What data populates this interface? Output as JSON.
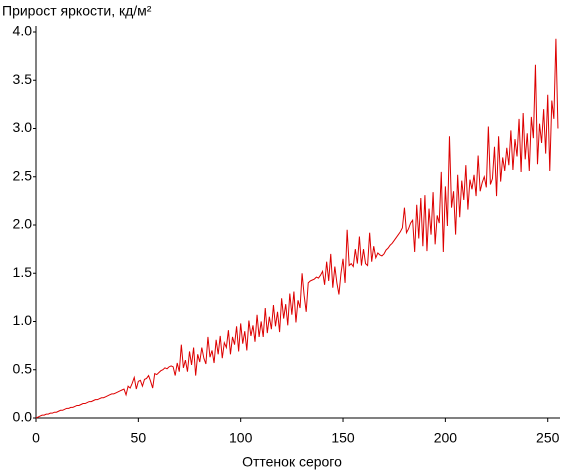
{
  "chart_data": {
    "type": "line",
    "title": "Прирост яркости, кд/м²",
    "x_label": "Оттенок серого",
    "color": "#dd0000",
    "x": [
      0,
      1,
      2,
      3,
      4,
      5,
      6,
      7,
      8,
      9,
      10,
      11,
      12,
      13,
      14,
      15,
      16,
      17,
      18,
      19,
      20,
      21,
      22,
      23,
      24,
      25,
      26,
      27,
      28,
      29,
      30,
      31,
      32,
      33,
      34,
      35,
      36,
      37,
      38,
      39,
      40,
      41,
      42,
      43,
      44,
      45,
      46,
      47,
      48,
      49,
      50,
      51,
      52,
      53,
      54,
      55,
      56,
      57,
      58,
      59,
      60,
      61,
      62,
      63,
      64,
      65,
      66,
      67,
      68,
      69,
      70,
      71,
      72,
      73,
      74,
      75,
      76,
      77,
      78,
      79,
      80,
      81,
      82,
      83,
      84,
      85,
      86,
      87,
      88,
      89,
      90,
      91,
      92,
      93,
      94,
      95,
      96,
      97,
      98,
      99,
      100,
      101,
      102,
      103,
      104,
      105,
      106,
      107,
      108,
      109,
      110,
      111,
      112,
      113,
      114,
      115,
      116,
      117,
      118,
      119,
      120,
      121,
      122,
      123,
      124,
      125,
      126,
      127,
      128,
      129,
      130,
      131,
      132,
      133,
      134,
      135,
      136,
      137,
      138,
      139,
      140,
      141,
      142,
      143,
      144,
      145,
      146,
      147,
      148,
      149,
      150,
      151,
      152,
      153,
      154,
      155,
      156,
      157,
      158,
      159,
      160,
      161,
      162,
      163,
      164,
      165,
      166,
      167,
      168,
      169,
      170,
      171,
      172,
      173,
      174,
      175,
      176,
      177,
      178,
      179,
      180,
      181,
      182,
      183,
      184,
      185,
      186,
      187,
      188,
      189,
      190,
      191,
      192,
      193,
      194,
      195,
      196,
      197,
      198,
      199,
      200,
      201,
      202,
      203,
      204,
      205,
      206,
      207,
      208,
      209,
      210,
      211,
      212,
      213,
      214,
      215,
      216,
      217,
      218,
      219,
      220,
      221,
      222,
      223,
      224,
      225,
      226,
      227,
      228,
      229,
      230,
      231,
      232,
      233,
      234,
      235,
      236,
      237,
      238,
      239,
      240,
      241,
      242,
      243,
      244,
      245,
      246,
      247,
      248,
      249,
      250,
      251,
      252,
      253,
      254,
      255
    ],
    "values": [
      0.0,
      0.01,
      0.02,
      0.03,
      0.03,
      0.04,
      0.04,
      0.05,
      0.05,
      0.06,
      0.06,
      0.07,
      0.08,
      0.08,
      0.09,
      0.1,
      0.1,
      0.11,
      0.11,
      0.12,
      0.13,
      0.13,
      0.14,
      0.15,
      0.15,
      0.16,
      0.17,
      0.17,
      0.18,
      0.19,
      0.19,
      0.2,
      0.21,
      0.21,
      0.22,
      0.23,
      0.24,
      0.25,
      0.25,
      0.26,
      0.27,
      0.28,
      0.29,
      0.3,
      0.24,
      0.33,
      0.31,
      0.36,
      0.42,
      0.3,
      0.38,
      0.39,
      0.33,
      0.4,
      0.41,
      0.44,
      0.38,
      0.31,
      0.46,
      0.45,
      0.47,
      0.49,
      0.5,
      0.52,
      0.51,
      0.53,
      0.54,
      0.53,
      0.44,
      0.57,
      0.48,
      0.76,
      0.52,
      0.6,
      0.48,
      0.69,
      0.55,
      0.73,
      0.44,
      0.66,
      0.58,
      0.73,
      0.62,
      0.56,
      0.84,
      0.63,
      0.7,
      0.57,
      0.81,
      0.66,
      0.85,
      0.62,
      0.78,
      0.73,
      0.91,
      0.66,
      0.84,
      0.76,
      0.95,
      0.69,
      0.98,
      0.77,
      0.9,
      0.7,
      1.01,
      0.85,
      0.96,
      0.79,
      1.07,
      0.84,
      1.0,
      0.84,
      1.14,
      0.88,
      1.05,
      0.92,
      1.17,
      0.95,
      1.1,
      0.89,
      1.24,
      1.03,
      1.18,
      0.96,
      1.29,
      1.07,
      1.31,
      0.99,
      1.22,
      1.14,
      1.5,
      1.27,
      1.1,
      1.4,
      1.42,
      1.43,
      1.44,
      1.46,
      1.45,
      1.48,
      1.52,
      1.38,
      1.62,
      1.42,
      1.7,
      1.35,
      1.57,
      1.4,
      1.28,
      1.5,
      1.65,
      1.4,
      1.95,
      1.58,
      1.6,
      1.57,
      1.75,
      1.6,
      1.88,
      1.58,
      1.75,
      1.6,
      1.58,
      1.92,
      1.62,
      1.78,
      1.66,
      1.71,
      1.69,
      1.68,
      1.7,
      1.74,
      1.76,
      1.79,
      1.81,
      1.84,
      1.87,
      1.9,
      1.93,
      1.97,
      2.18,
      1.92,
      1.96,
      2.02,
      2.05,
      1.72,
      2.21,
      1.86,
      2.28,
      1.78,
      2.31,
      1.73,
      2.17,
      1.9,
      2.34,
      1.8,
      2.1,
      2.02,
      2.55,
      1.72,
      2.4,
      1.99,
      2.92,
      2.18,
      2.35,
      1.9,
      2.52,
      2.08,
      2.46,
      2.26,
      2.62,
      2.16,
      2.47,
      2.37,
      2.52,
      2.3,
      2.72,
      2.35,
      2.44,
      2.5,
      2.39,
      3.02,
      2.42,
      2.48,
      2.81,
      2.3,
      2.92,
      2.45,
      2.7,
      2.56,
      2.8,
      2.62,
      2.98,
      2.57,
      2.89,
      2.71,
      3.1,
      2.55,
      3.16,
      2.68,
      2.95,
      2.56,
      3.12,
      2.9,
      3.66,
      2.63,
      3.05,
      2.85,
      3.2,
      2.74,
      3.35,
      2.56,
      3.29,
      3.1,
      3.93,
      3.0
    ],
    "xlim": [
      0,
      256
    ],
    "ylim": [
      0,
      4
    ],
    "xticks": [
      0,
      50,
      100,
      150,
      200,
      250
    ],
    "yticks": [
      {
        "value": 0,
        "label": "0.0"
      },
      0.5,
      {
        "value": 1,
        "label": "1.0"
      },
      1.5,
      {
        "value": 2,
        "label": "2.0"
      },
      2.5,
      {
        "value": 3,
        "label": "3.0"
      },
      3.5,
      {
        "value": 4,
        "label": "4.0"
      }
    ]
  }
}
